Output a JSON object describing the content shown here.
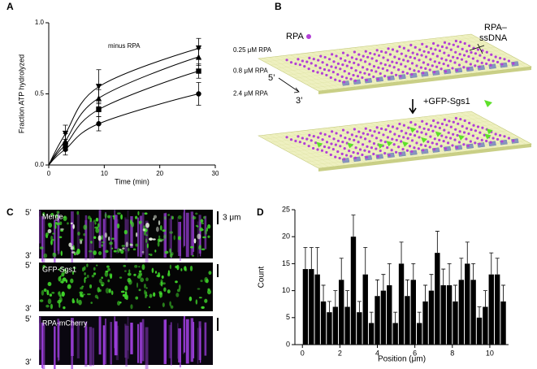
{
  "chart_data": [
    {
      "type": "line",
      "panel": "A",
      "x_label": "Time (min)",
      "y_label": "Fraction ATP hydrolyzed",
      "x": [
        3,
        9,
        27
      ],
      "series": [
        {
          "name": "minus RPA",
          "marker": "triangle-down",
          "color": "#000000",
          "values": [
            0.22,
            0.55,
            0.82
          ],
          "errors": [
            0.06,
            0.12,
            0.07
          ]
        },
        {
          "name": "0.25 μM RPA",
          "marker": "triangle-up",
          "color": "#000000",
          "values": [
            0.17,
            0.47,
            0.76
          ],
          "errors": [
            0.05,
            0.06,
            0.06
          ]
        },
        {
          "name": "0.8 μM RPA",
          "marker": "square",
          "color": "#000000",
          "values": [
            0.14,
            0.39,
            0.66
          ],
          "errors": [
            0.04,
            0.05,
            0.05
          ]
        },
        {
          "name": "2.4 μM RPA",
          "marker": "circle",
          "color": "#000000",
          "values": [
            0.11,
            0.29,
            0.5
          ],
          "errors": [
            0.04,
            0.05,
            0.08
          ]
        }
      ],
      "xlim": [
        0,
        30
      ],
      "xticks": [
        0,
        10,
        20,
        30
      ],
      "ylim": [
        0,
        1
      ],
      "yticks": [
        {
          "value": 0,
          "label": "0.0"
        },
        {
          "value": 0.5,
          "label": "0.5"
        },
        {
          "value": 1,
          "label": "1.0"
        }
      ]
    },
    {
      "type": "histogram",
      "panel": "D",
      "x_label": "Position (μm)",
      "y_label": "Count",
      "color": "#000000",
      "bins": [
        0,
        0.32,
        0.64,
        0.96,
        1.28,
        1.6,
        1.92,
        2.24,
        2.56,
        2.88,
        3.2,
        3.52,
        3.84,
        4.16,
        4.48,
        4.8,
        5.12,
        5.44,
        5.76,
        6.08,
        6.4,
        6.72,
        7.04,
        7.36,
        7.68,
        8,
        8.32,
        8.64,
        8.96,
        9.28,
        9.6,
        9.92,
        10.24,
        10.56,
        10.88
      ],
      "values": [
        14,
        14,
        13,
        8,
        6,
        7,
        12,
        7,
        20,
        6,
        13,
        4,
        9,
        10,
        11,
        4,
        15,
        9,
        12,
        4,
        8,
        10,
        17,
        11,
        11,
        8,
        12,
        15,
        12,
        5,
        7,
        13,
        13,
        8
      ],
      "errors": [
        4,
        4,
        5,
        3,
        2,
        3,
        4,
        3,
        4,
        2,
        5,
        2,
        3,
        3,
        4,
        2,
        4,
        3,
        3,
        2,
        3,
        3,
        4,
        3,
        4,
        3,
        4,
        4,
        3,
        2,
        3,
        4,
        3,
        3
      ],
      "xlim": [
        -0.4,
        11
      ],
      "xticks": [
        0,
        2,
        4,
        6,
        8,
        10
      ],
      "ylim": [
        0,
        25
      ],
      "yticks": [
        0,
        5,
        10,
        15,
        20,
        25
      ]
    }
  ],
  "diagram": {
    "panel": "B",
    "rpa": "RPA",
    "rpa_ssdna": [
      "RPA–",
      "ssDNA"
    ],
    "five_prime": "5’",
    "three_prime": "3’",
    "added": "+GFP-Sgs1"
  },
  "micrographs": {
    "panel": "C",
    "scale_bar": "3 μm",
    "channels": [
      {
        "name": "Merge",
        "five_prime": "5’",
        "three_prime": "3’"
      },
      {
        "name": "GFP-Sgs1",
        "five_prime": "5’",
        "three_prime": "3’"
      },
      {
        "name": "RPA-mCherry",
        "five_prime": "5’",
        "three_prime": "3’"
      }
    ]
  }
}
